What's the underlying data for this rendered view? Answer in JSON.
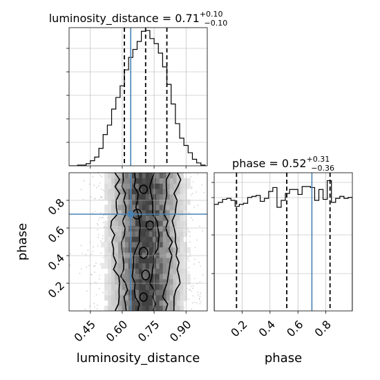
{
  "chart_data": {
    "type": "corner",
    "parameters": [
      "luminosity_distance",
      "phase"
    ],
    "truth_color": "#4682b4",
    "panels": {
      "luminosity_distance_hist": {
        "title_param": "luminosity_distance",
        "title_median": "0.71",
        "title_plus": "+0.10",
        "title_minus": "−0.10",
        "xlim": [
          0.35,
          1.0
        ],
        "bin_edges": [
          0.35,
          0.37,
          0.39,
          0.41,
          0.43,
          0.45,
          0.47,
          0.49,
          0.51,
          0.53,
          0.55,
          0.57,
          0.59,
          0.61,
          0.63,
          0.65,
          0.67,
          0.69,
          0.71,
          0.73,
          0.75,
          0.77,
          0.79,
          0.81,
          0.83,
          0.85,
          0.87,
          0.89,
          0.91,
          0.93,
          0.95,
          0.97,
          0.99
        ],
        "counts": [
          0,
          0,
          1,
          1,
          3,
          7,
          12,
          24,
          43,
          56,
          78,
          94,
          110,
          132,
          149,
          160,
          171,
          185,
          186,
          175,
          168,
          155,
          136,
          112,
          85,
          58,
          38,
          28,
          18,
          9,
          4,
          1
        ],
        "ylim": [
          0,
          190
        ],
        "quantiles": [
          0.61,
          0.71,
          0.81
        ],
        "truth": 0.64
      },
      "phase_hist": {
        "title_param": "phase",
        "title_median": "0.52",
        "title_plus": "+0.31",
        "title_minus": "−0.36",
        "xlim": [
          0.0,
          0.99
        ],
        "bin_edges": [
          0.0,
          0.03,
          0.06,
          0.09,
          0.12,
          0.15,
          0.18,
          0.21,
          0.24,
          0.27,
          0.3,
          0.33,
          0.36,
          0.39,
          0.42,
          0.45,
          0.48,
          0.51,
          0.54,
          0.57,
          0.6,
          0.63,
          0.66,
          0.69,
          0.72,
          0.75,
          0.78,
          0.81,
          0.84,
          0.87,
          0.9,
          0.93,
          0.96,
          0.99
        ],
        "counts": [
          108,
          110,
          113,
          114,
          112,
          106,
          108,
          109,
          115,
          116,
          117,
          111,
          114,
          121,
          125,
          105,
          112,
          119,
          123,
          123,
          118,
          126,
          126,
          125,
          112,
          123,
          113,
          132,
          110,
          114,
          116,
          114,
          115
        ],
        "ylim": [
          0,
          140
        ],
        "quantiles": [
          0.16,
          0.52,
          0.83
        ],
        "truth": 0.7
      },
      "joint": {
        "x_param": "luminosity_distance",
        "y_param": "phase",
        "xlim": [
          0.35,
          1.0
        ],
        "ylim": [
          0.0,
          1.0
        ],
        "truth": [
          0.64,
          0.7
        ],
        "density_peak_x": 0.71,
        "density_sigma_x": 0.1
      }
    },
    "x_ticks_distance": [
      "0.45",
      "0.60",
      "0.75",
      "0.90"
    ],
    "x_tick_values_distance": [
      0.45,
      0.6,
      0.75,
      0.9
    ],
    "y_ticks_phase": [
      "0.2",
      "0.4",
      "0.6",
      "0.8"
    ],
    "y_tick_values_phase": [
      0.2,
      0.4,
      0.6,
      0.8
    ],
    "x_ticks_phase": [
      "0.2",
      "0.4",
      "0.6",
      "0.8"
    ],
    "x_tick_values_phase": [
      0.2,
      0.4,
      0.6,
      0.8
    ],
    "xlabel_distance": "luminosity_distance",
    "xlabel_phase": "phase",
    "ylabel_phase": "phase",
    "grid": true
  }
}
